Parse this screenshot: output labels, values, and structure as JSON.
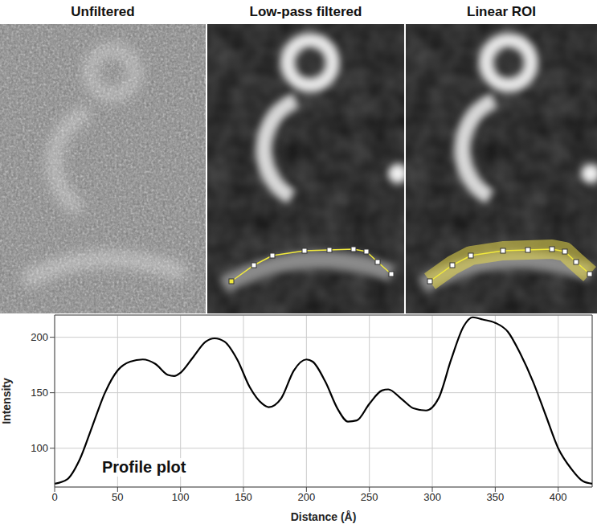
{
  "panels": [
    "Unfiltered",
    "Low-pass filtered",
    "Linear ROI"
  ],
  "chart_data": {
    "type": "line",
    "annotations": [
      "Profile plot"
    ],
    "x_label": "Distance (Å)",
    "y_label": "Intensity",
    "x": [
      0,
      10,
      20,
      30,
      40,
      50,
      60,
      70,
      80,
      90,
      95,
      100,
      110,
      120,
      127,
      135,
      145,
      155,
      165,
      170,
      180,
      190,
      200,
      205,
      215,
      225,
      233,
      240,
      250,
      260,
      265,
      275,
      285,
      295,
      305,
      315,
      325,
      332,
      340,
      350,
      360,
      370,
      380,
      390,
      400,
      410,
      420,
      427
    ],
    "values": [
      68,
      72,
      90,
      120,
      150,
      170,
      178,
      180,
      176,
      166,
      165,
      168,
      182,
      196,
      199,
      196,
      180,
      155,
      140,
      137,
      145,
      170,
      180,
      178,
      160,
      135,
      124,
      125,
      140,
      152,
      153,
      145,
      136,
      134,
      145,
      180,
      210,
      218,
      216,
      213,
      205,
      185,
      160,
      130,
      100,
      82,
      70,
      68
    ],
    "xlim": [
      0,
      427
    ],
    "ylim": [
      65,
      220
    ],
    "xticks": [
      0,
      50,
      100,
      150,
      200,
      250,
      300,
      350,
      400
    ],
    "yticks": [
      100,
      150,
      200
    ],
    "grid": true,
    "color": "#000000"
  }
}
